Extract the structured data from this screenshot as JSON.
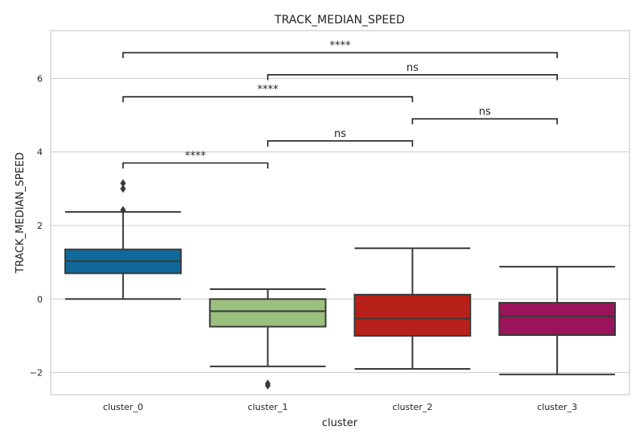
{
  "chart_data": {
    "type": "box",
    "title": "TRACK_MEDIAN_SPEED",
    "xlabel": "cluster",
    "ylabel": "TRACK_MEDIAN_SPEED",
    "ylim": [
      -2.6,
      7.3
    ],
    "yticks": [
      -2,
      0,
      2,
      4,
      6
    ],
    "ytick_labels": [
      "−2",
      "0",
      "2",
      "4",
      "6"
    ],
    "grid": "horizontal",
    "categories": [
      "cluster_0",
      "cluster_1",
      "cluster_2",
      "cluster_3"
    ],
    "boxes": [
      {
        "name": "cluster_0",
        "color": "#0f6a9b",
        "whisker_low": 0.0,
        "q1": 0.7,
        "median": 1.03,
        "q3": 1.35,
        "whisker_high": 2.37,
        "outliers": [
          2.42,
          3.0,
          3.15
        ]
      },
      {
        "name": "cluster_1",
        "color": "#9bc07d",
        "whisker_low": -1.83,
        "q1": -0.75,
        "median": -0.33,
        "q3": 0.0,
        "whisker_high": 0.27,
        "outliers": [
          -2.3,
          -2.35
        ]
      },
      {
        "name": "cluster_2",
        "color": "#b8201a",
        "whisker_low": -1.9,
        "q1": -1.0,
        "median": -0.53,
        "q3": 0.12,
        "whisker_high": 1.38,
        "outliers": []
      },
      {
        "name": "cluster_3",
        "color": "#9b135a",
        "whisker_low": -2.05,
        "q1": -0.98,
        "median": -0.47,
        "q3": -0.1,
        "whisker_high": 0.88,
        "outliers": []
      }
    ],
    "annotations": [
      {
        "from": 0,
        "to": 1,
        "y": 3.7,
        "label": "****"
      },
      {
        "from": 1,
        "to": 2,
        "y": 4.3,
        "label": "ns"
      },
      {
        "from": 2,
        "to": 3,
        "y": 4.9,
        "label": "ns"
      },
      {
        "from": 0,
        "to": 2,
        "y": 5.5,
        "label": "****"
      },
      {
        "from": 1,
        "to": 3,
        "y": 6.1,
        "label": "ns"
      },
      {
        "from": 0,
        "to": 3,
        "y": 6.7,
        "label": "****"
      }
    ]
  }
}
